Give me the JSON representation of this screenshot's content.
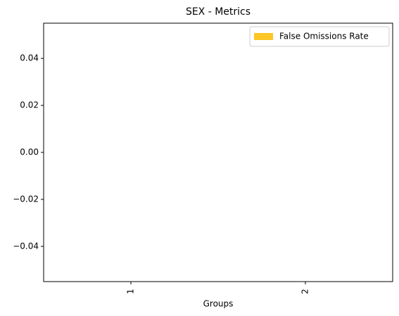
{
  "chart_data": {
    "type": "bar",
    "title": "SEX - Metrics",
    "x_label": "Groups",
    "categories": [
      "1",
      "2"
    ],
    "series": [
      {
        "name": "False Omissions Rate",
        "color": "#fcc624",
        "values": [
          0,
          0
        ]
      }
    ],
    "ylim": [
      -0.055,
      0.055
    ],
    "yticks": [
      {
        "value": -0.04,
        "label": "−0.04"
      },
      {
        "value": -0.02,
        "label": "−0.02"
      },
      {
        "value": 0,
        "label": "0.00"
      },
      0.02,
      0.04
    ],
    "grid": false,
    "legend": "upper right"
  }
}
